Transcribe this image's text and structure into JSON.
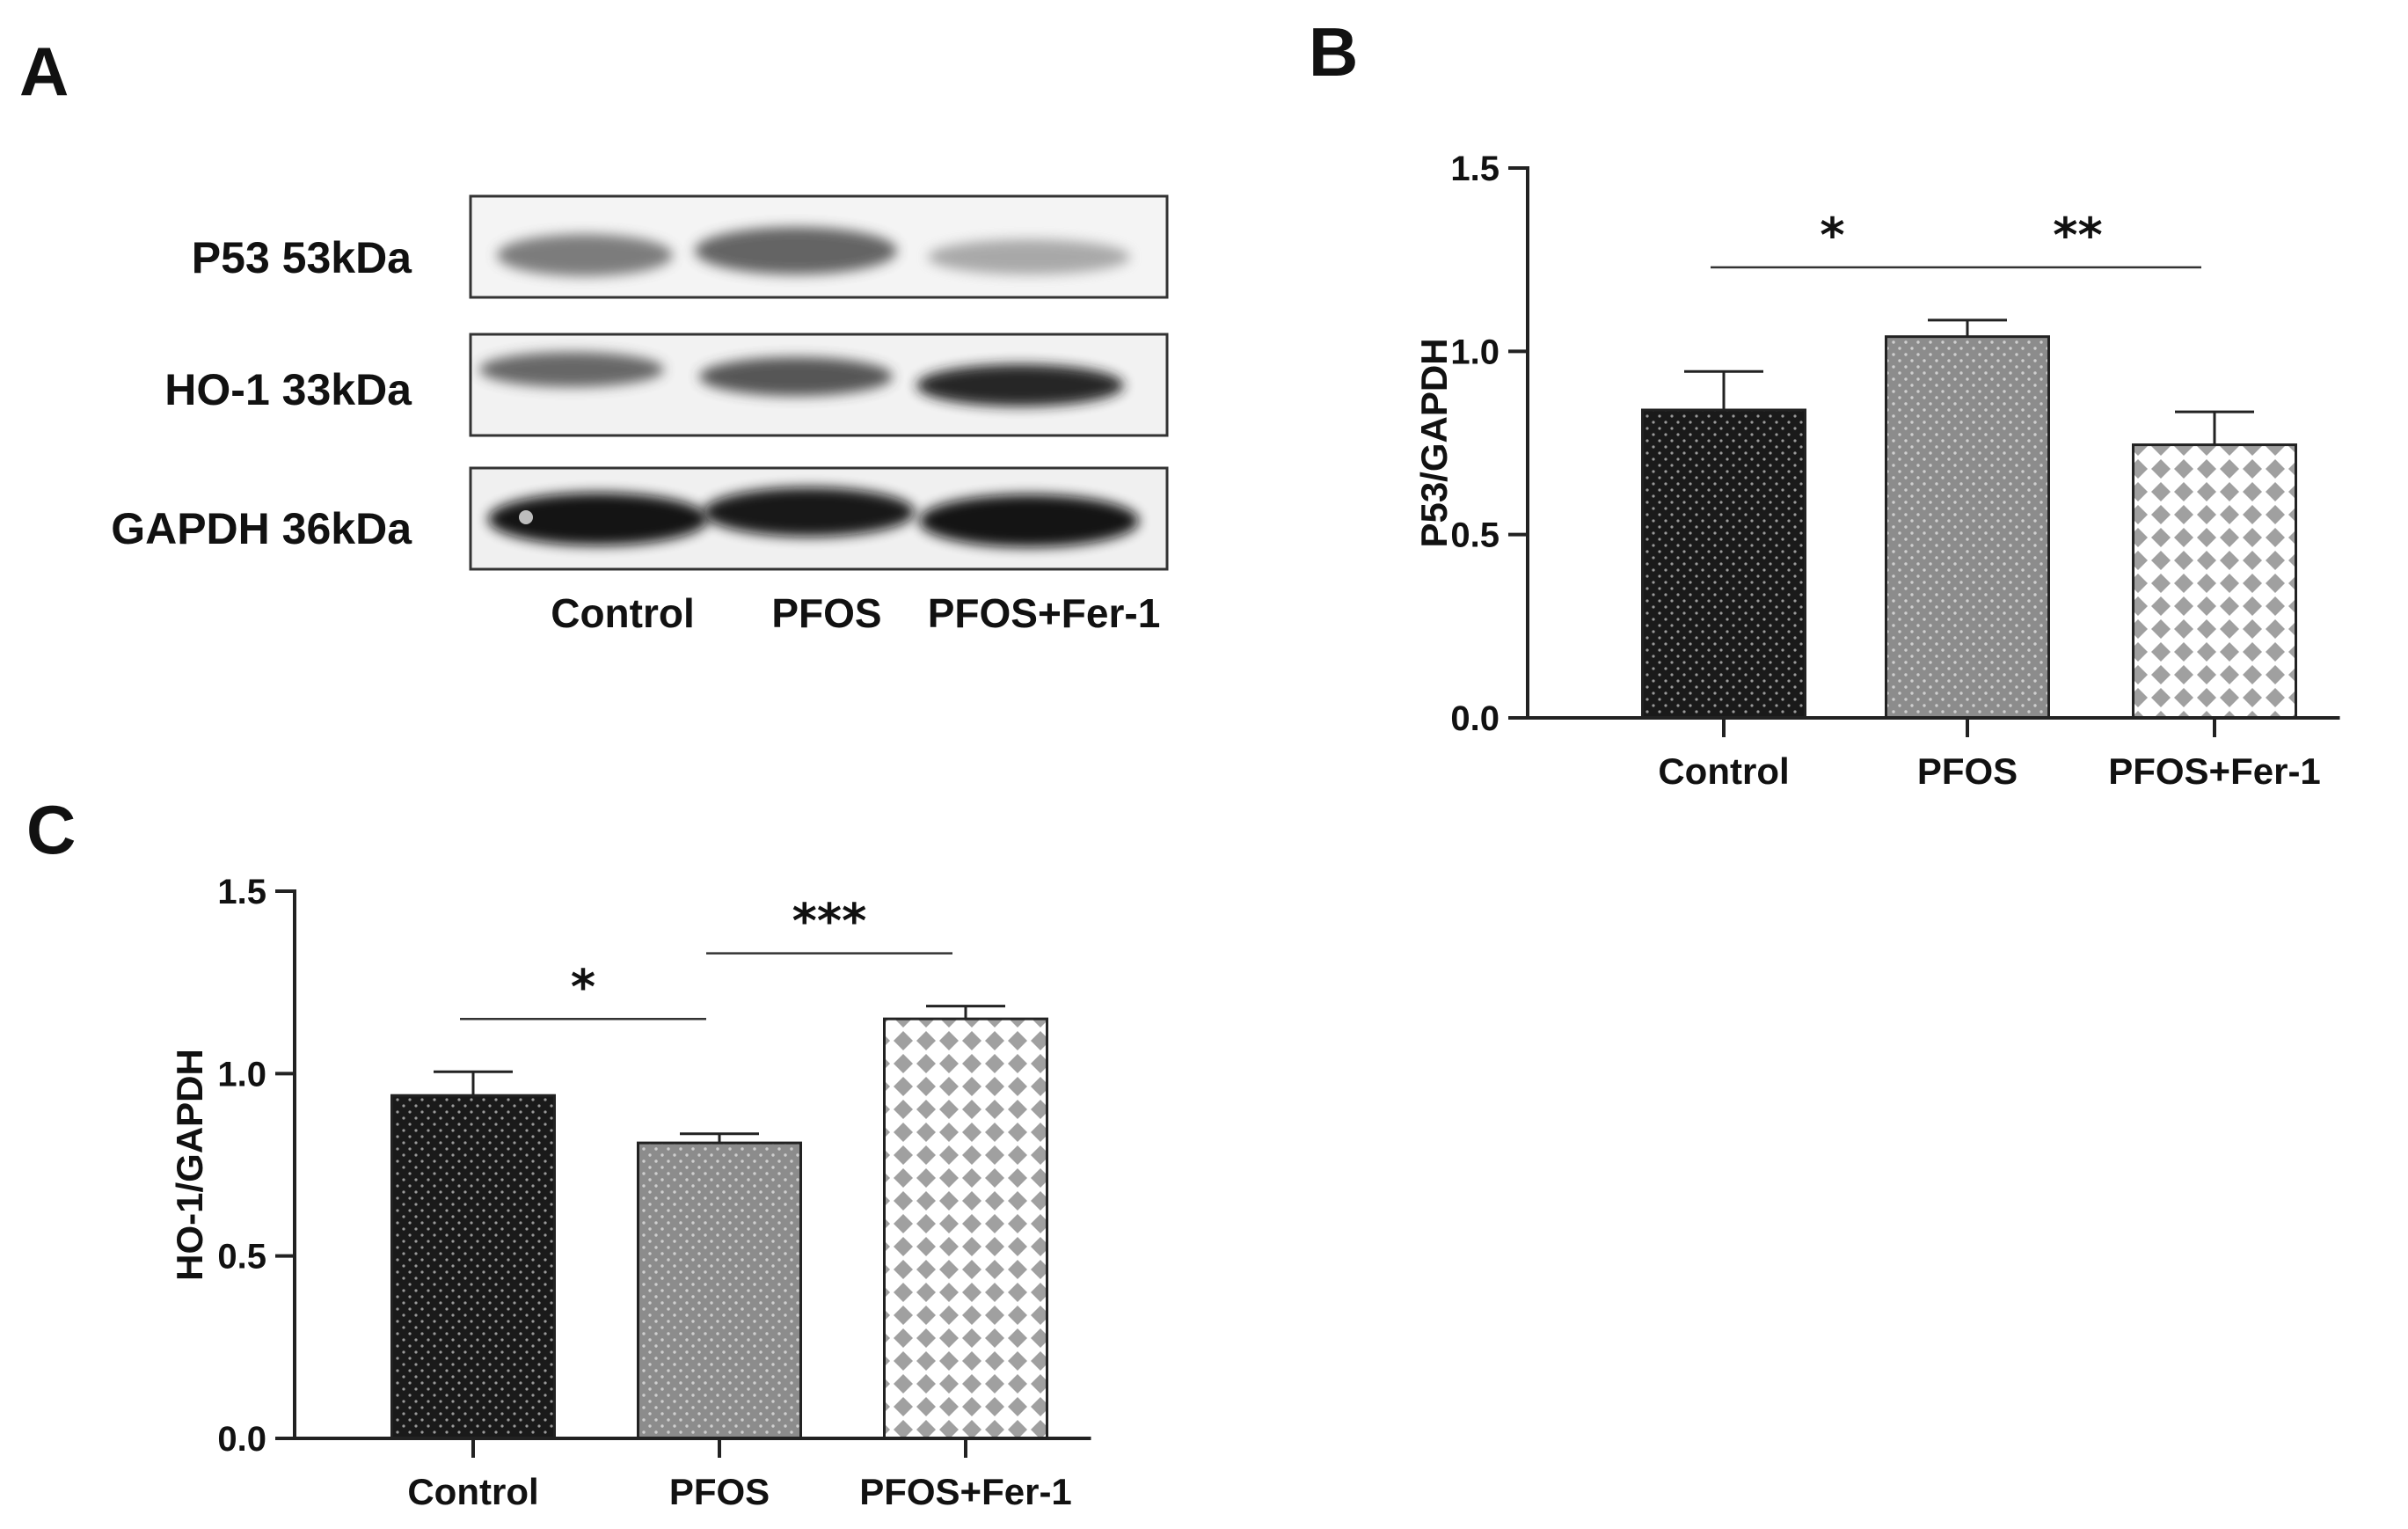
{
  "panels": {
    "a": "A",
    "b": "B",
    "c": "C"
  },
  "blot": {
    "rows": [
      "P53 53kDa",
      "HO-1 33kDa",
      "GAPDH 36kDa"
    ],
    "lanes": [
      "Control",
      "PFOS",
      "PFOS+Fer-1"
    ]
  },
  "colors": {
    "control": "#1a1a1a",
    "pfos": "#8c8c8c",
    "fer1": "#a0a0a0"
  },
  "chart_data": [
    {
      "type": "bar",
      "panel": "B",
      "categories": [
        "Control",
        "PFOS",
        "PFOS+Fer-1"
      ],
      "values": [
        0.84,
        1.04,
        0.745
      ],
      "errors": [
        0.105,
        0.045,
        0.09
      ],
      "ylabel": "P53/GAPDH",
      "ylim": [
        0,
        1.5
      ],
      "yticks": [
        "0.0",
        "0.5",
        "1.0",
        "1.5"
      ],
      "significance": [
        {
          "from": 0,
          "to": 1,
          "label": "*"
        },
        {
          "from": 1,
          "to": 2,
          "label": "**"
        }
      ]
    },
    {
      "type": "bar",
      "panel": "C",
      "categories": [
        "Control",
        "PFOS",
        "PFOS+Fer-1"
      ],
      "values": [
        0.94,
        0.81,
        1.15
      ],
      "errors": [
        0.065,
        0.025,
        0.035
      ],
      "ylabel": "HO-1/GAPDH",
      "ylim": [
        0,
        1.5
      ],
      "yticks": [
        "0.0",
        "0.5",
        "1.0",
        "1.5"
      ],
      "significance": [
        {
          "from": 0,
          "to": 1,
          "label": "*"
        },
        {
          "from": 1,
          "to": 2,
          "label": "***"
        }
      ]
    }
  ]
}
